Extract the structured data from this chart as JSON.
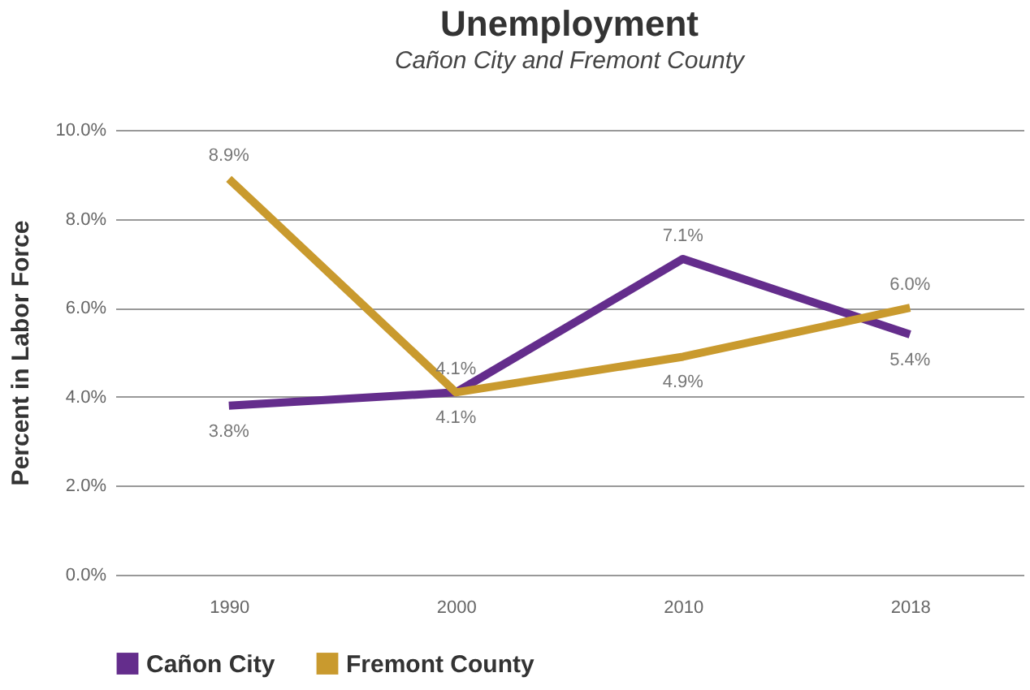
{
  "chart_data": {
    "type": "line",
    "title": "Unemployment",
    "subtitle": "Cañon City and Fremont County",
    "ylabel": "Percent in Labor Force",
    "categories": [
      "1990",
      "2000",
      "2010",
      "2018"
    ],
    "series": [
      {
        "name": "Cañon City",
        "color": "#642d8c",
        "values": [
          3.8,
          4.1,
          7.1,
          5.4
        ],
        "value_labels": [
          "3.8%",
          "4.1%",
          "7.1%",
          "5.4%"
        ]
      },
      {
        "name": "Fremont County",
        "color": "#c99a2e",
        "values": [
          8.9,
          4.1,
          4.9,
          6.0
        ],
        "value_labels": [
          "8.9%",
          "4.1%",
          "4.9%",
          "6.0%"
        ]
      }
    ],
    "ylim": [
      0,
      10
    ],
    "yticks": [
      {
        "value": 0,
        "label": "0.0%"
      },
      {
        "value": 2,
        "label": "2.0%"
      },
      {
        "value": 4,
        "label": "4.0%"
      },
      {
        "value": 6,
        "label": "6.0%"
      },
      {
        "value": 8,
        "label": "8.0%"
      },
      {
        "value": 10,
        "label": "10.0%"
      }
    ],
    "grid": "y",
    "legend": "bottom",
    "marker": "none",
    "line_style": "solid"
  }
}
